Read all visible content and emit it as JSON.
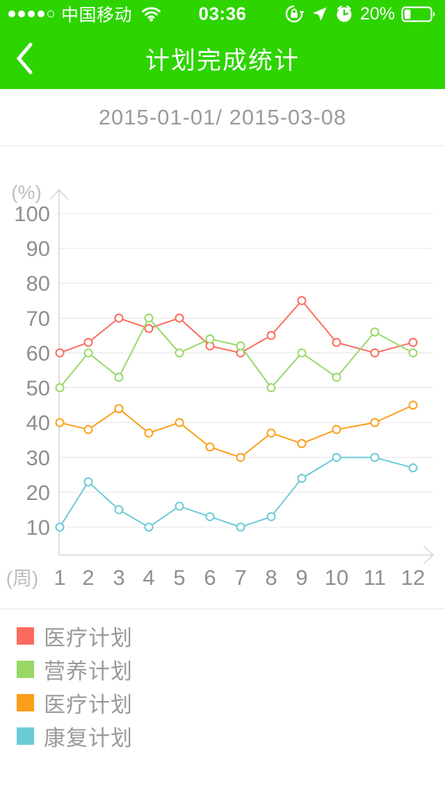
{
  "status_bar": {
    "carrier": "中国移动",
    "time": "03:36",
    "battery_percent": "20%",
    "signal_filled_dots": 4,
    "signal_total_dots": 5,
    "icons_left": [
      "signal-strength-icon",
      "wifi-icon"
    ],
    "icons_right": [
      "rotation-lock-icon",
      "location-arrow-icon",
      "alarm-clock-icon",
      "battery-icon"
    ]
  },
  "nav": {
    "title": "计划完成统计",
    "back_icon": "back-chevron-icon"
  },
  "date_range": "2015-01-01/ 2015-03-08",
  "chart_data": {
    "type": "line",
    "title": "",
    "xlabel": "(周)",
    "ylabel": "(%)",
    "x_unit_label": "(周)",
    "y_unit_label": "(%)",
    "categories": [
      1,
      2,
      3,
      4,
      5,
      6,
      7,
      8,
      9,
      10,
      11,
      12
    ],
    "y_ticks": [
      10,
      20,
      30,
      40,
      50,
      60,
      70,
      80,
      90,
      100
    ],
    "ylim": [
      0,
      100
    ],
    "grid": true,
    "marker": "open-circle",
    "legend_position": "bottom",
    "series": [
      {
        "name": "医疗计划",
        "color": "#FB6A5D",
        "values": [
          60,
          63,
          70,
          67,
          70,
          62,
          60,
          65,
          75,
          63,
          60,
          63
        ]
      },
      {
        "name": "营养计划",
        "color": "#97D867",
        "values": [
          50,
          60,
          53,
          70,
          60,
          64,
          62,
          50,
          60,
          53,
          66,
          60
        ]
      },
      {
        "name": "医疗计划",
        "color": "#FB9E1A",
        "values": [
          40,
          38,
          44,
          37,
          40,
          33,
          30,
          37,
          34,
          38,
          40,
          45
        ]
      },
      {
        "name": "康复计划",
        "color": "#6ACBD5",
        "values": [
          10,
          23,
          15,
          10,
          16,
          13,
          10,
          13,
          24,
          30,
          30,
          27
        ]
      }
    ]
  },
  "colors": {
    "header_green": "#2DD400",
    "divider": "#E8E8E8",
    "grid_line": "#E4E4E4",
    "axis_line": "#D4D4D4",
    "tick_label": "#8F8F8F",
    "unit_label": "#BDBDBD",
    "date_text": "#9A9A9A",
    "legend_text": "#9A9A9A"
  }
}
